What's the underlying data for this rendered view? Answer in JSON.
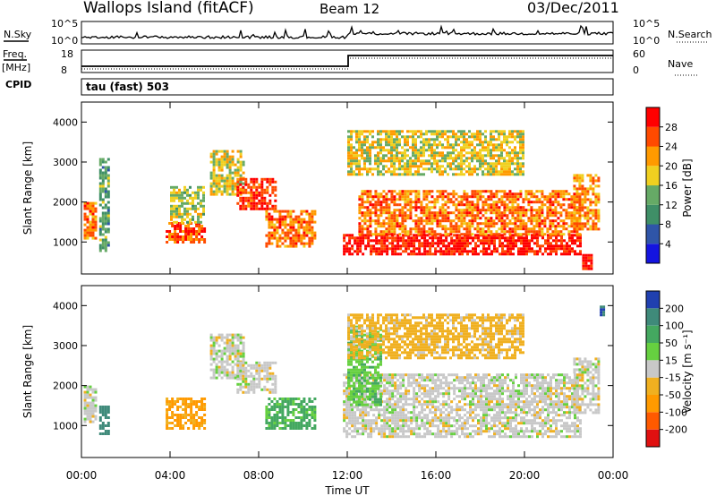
{
  "header": {
    "station": "Wallops Island (fitACF)",
    "beam": "Beam 12",
    "date": "03/Dec/2011"
  },
  "status_panels": {
    "nsky_label": "N.Sky",
    "nsearch_label": "N.Search",
    "nsky_ticks": [
      "10^5",
      "10^0"
    ],
    "nsky_right_ticks": [
      "10^5",
      "10^0"
    ],
    "freq_label": "Freq.",
    "freq_unit": "[MHz]",
    "freq_ticks": [
      "18",
      "8"
    ],
    "nave_label": "Nave",
    "nave_ticks": [
      "60",
      "0"
    ],
    "cpid_label": "CPID",
    "cpid_value": "tau (fast) 503"
  },
  "colors": {
    "power": [
      "#1414e0",
      "#2f55a8",
      "#3f8f67",
      "#66aa66",
      "#f0d020",
      "#ff9a00",
      "#ff4a00",
      "#ff0000"
    ],
    "velocity": [
      "#e01010",
      "#ff5a00",
      "#ff9a00",
      "#f0b020",
      "#c8c8c8",
      "#66d040",
      "#44a860",
      "#3f8a7a",
      "#2040b0"
    ]
  },
  "chart_data": [
    {
      "type": "heatmap",
      "name": "power",
      "ylabel": "Slant Range [km]",
      "yticks": [
        "4000",
        "3000",
        "2000",
        "1000"
      ],
      "ylim": [
        200,
        4500
      ],
      "xlim": [
        0,
        24
      ],
      "colorbar_label": "Power [dB]",
      "colorbar_ticks": [
        "28",
        "24",
        "20",
        "16",
        "12",
        "8",
        "4"
      ],
      "colorbar_range": [
        0,
        32
      ],
      "regions": [
        {
          "t0": 0.1,
          "t1": 0.7,
          "r0": 1100,
          "r1": 2000,
          "level": 24
        },
        {
          "t0": 0.8,
          "t1": 1.2,
          "r0": 800,
          "r1": 3100,
          "level": 12
        },
        {
          "t0": 3.8,
          "t1": 5.5,
          "r0": 1000,
          "r1": 1500,
          "level": 26
        },
        {
          "t0": 4.0,
          "t1": 5.5,
          "r0": 1500,
          "r1": 2400,
          "level": 16
        },
        {
          "t0": 5.8,
          "t1": 7.3,
          "r0": 2200,
          "r1": 3300,
          "level": 18
        },
        {
          "t0": 7.0,
          "t1": 8.8,
          "r0": 1800,
          "r1": 2600,
          "level": 28
        },
        {
          "t0": 8.3,
          "t1": 10.5,
          "r0": 900,
          "r1": 1800,
          "level": 24
        },
        {
          "t0": 11.8,
          "t1": 22.5,
          "r0": 700,
          "r1": 1200,
          "level": 30
        },
        {
          "t0": 12.5,
          "t1": 22.5,
          "r0": 1200,
          "r1": 2300,
          "level": 24
        },
        {
          "t0": 12.0,
          "t1": 20.0,
          "r0": 2700,
          "r1": 3800,
          "level": 18
        },
        {
          "t0": 22.2,
          "t1": 23.3,
          "r0": 1300,
          "r1": 2700,
          "level": 22
        },
        {
          "t0": 22.6,
          "t1": 23.0,
          "r0": 300,
          "r1": 700,
          "level": 30
        }
      ]
    },
    {
      "type": "heatmap",
      "name": "velocity",
      "ylabel": "Slant Range [km]",
      "yticks": [
        "4000",
        "3000",
        "2000",
        "1000"
      ],
      "ylim": [
        200,
        4500
      ],
      "xlim": [
        0,
        24
      ],
      "xticks": [
        "00:00",
        "04:00",
        "08:00",
        "12:00",
        "16:00",
        "20:00",
        "00:00"
      ],
      "xlabel": "Time UT",
      "colorbar_label": "Velocity [m s⁻¹]",
      "colorbar_ticks": [
        "200",
        "100",
        "50",
        "15",
        "-15",
        "-50",
        "-100",
        "-200"
      ],
      "regions": [
        {
          "t0": 0.1,
          "t1": 0.7,
          "r0": 1100,
          "r1": 2000,
          "level": 0
        },
        {
          "t0": 0.8,
          "t1": 1.2,
          "r0": 800,
          "r1": 1500,
          "level": 120
        },
        {
          "t0": 3.8,
          "t1": 5.5,
          "r0": 900,
          "r1": 1700,
          "level": -60
        },
        {
          "t0": 5.8,
          "t1": 7.3,
          "r0": 2200,
          "r1": 3300,
          "level": 0
        },
        {
          "t0": 7.0,
          "t1": 8.8,
          "r0": 1800,
          "r1": 2600,
          "level": 0
        },
        {
          "t0": 8.3,
          "t1": 10.5,
          "r0": 900,
          "r1": 1700,
          "level": 60
        },
        {
          "t0": 11.8,
          "t1": 22.5,
          "r0": 700,
          "r1": 2300,
          "level": 0
        },
        {
          "t0": 12.0,
          "t1": 13.5,
          "r0": 1500,
          "r1": 3500,
          "level": 40
        },
        {
          "t0": 12.0,
          "t1": 20.0,
          "r0": 2700,
          "r1": 3800,
          "level": -30
        },
        {
          "t0": 22.2,
          "t1": 23.3,
          "r0": 1300,
          "r1": 2700,
          "level": 0
        },
        {
          "t0": 23.4,
          "t1": 23.6,
          "r0": 3700,
          "r1": 4000,
          "level": 200
        }
      ]
    }
  ]
}
